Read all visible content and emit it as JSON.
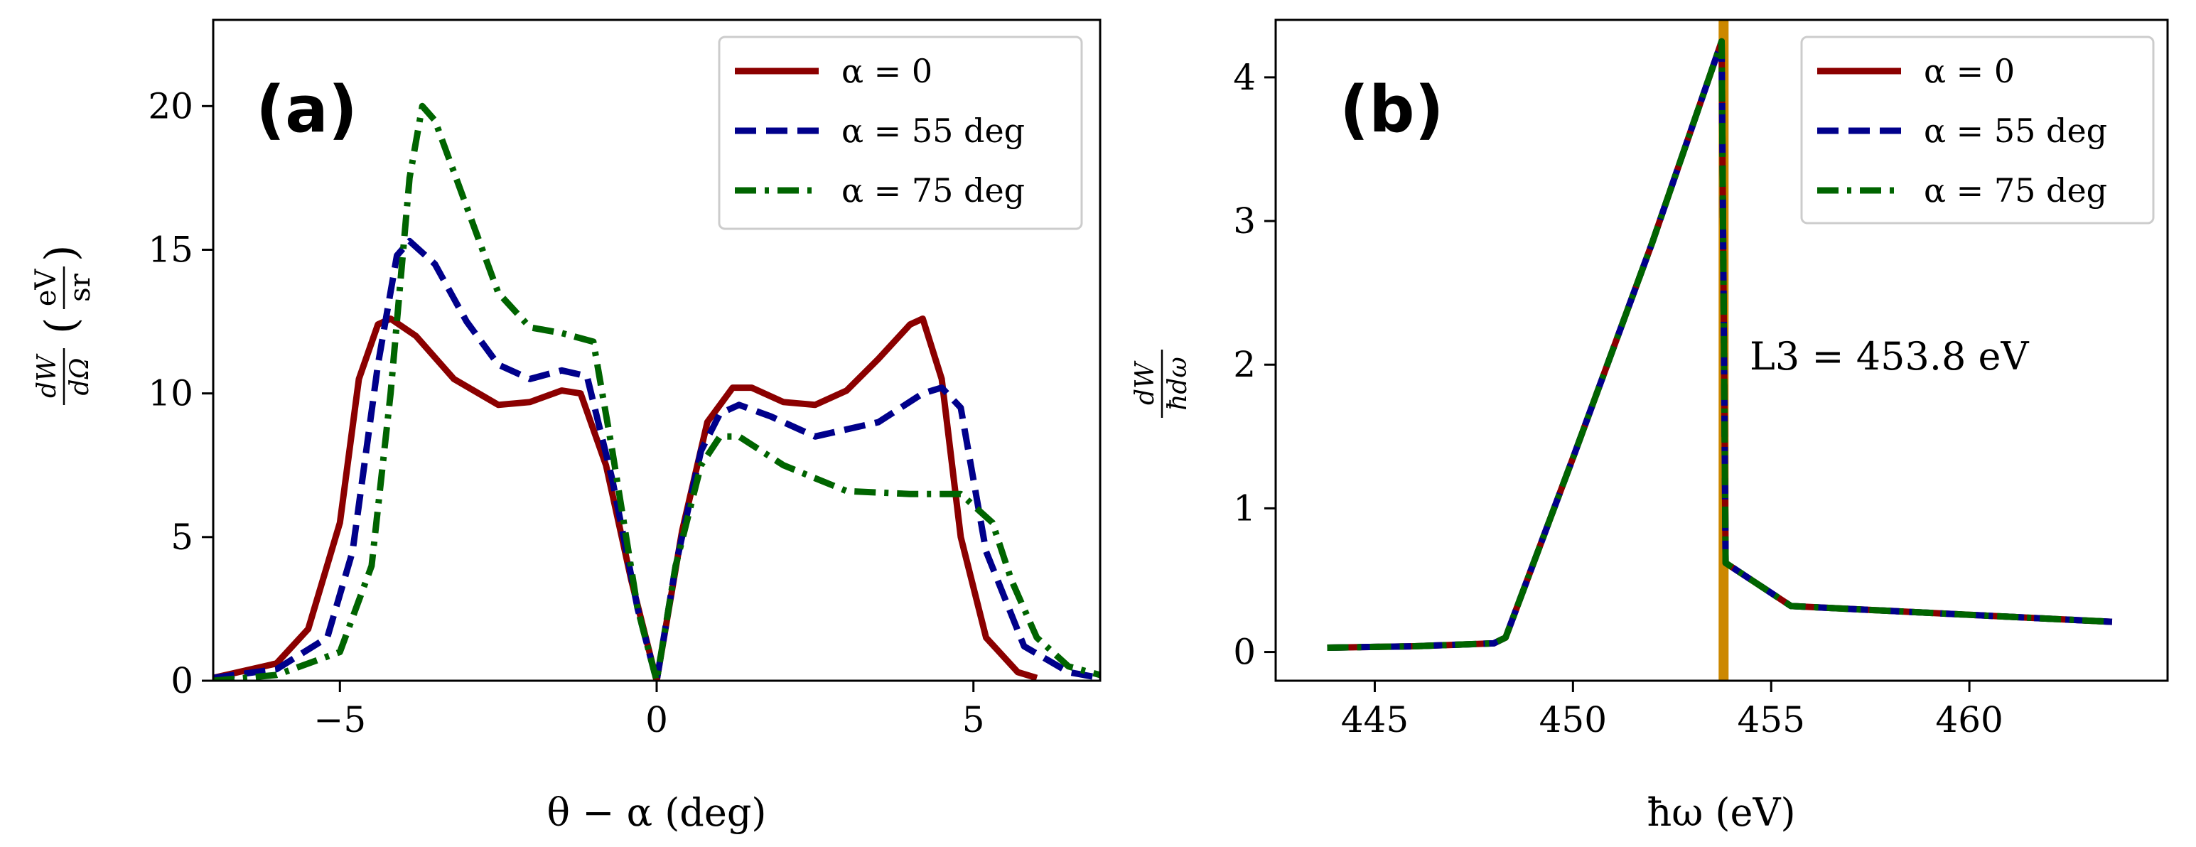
{
  "chart_data": [
    {
      "type": "line",
      "panel": "(a)",
      "xlabel": "θ − α (deg)",
      "ylabel": "dW/dΩ (eV/sr)",
      "ylabel_main": "dW",
      "ylabel_den": "dΩ",
      "ylabel_unit_num": "eV",
      "ylabel_unit_den": "sr",
      "xlim": [
        -7,
        7
      ],
      "ylim": [
        0,
        23
      ],
      "xticks": [
        -5,
        0,
        5
      ],
      "xtick_labels": [
        "−5",
        "0",
        "5"
      ],
      "yticks": [
        0,
        5,
        10,
        15,
        20
      ],
      "ytick_labels": [
        "0",
        "5",
        "10",
        "15",
        "20"
      ],
      "legend_position": "top-right",
      "series": [
        {
          "name": "α = 0",
          "color": "#8b0000",
          "style": "solid",
          "x": [
            -7,
            -6,
            -5.5,
            -5,
            -4.7,
            -4.4,
            -4.2,
            -3.8,
            -3.2,
            -2.5,
            -2.0,
            -1.5,
            -1.2,
            -0.8,
            -0.4,
            0,
            0.4,
            0.8,
            1.2,
            1.5,
            2.0,
            2.5,
            3.0,
            3.5,
            4.0,
            4.2,
            4.5,
            4.8,
            5.2,
            5.7,
            6.0
          ],
          "y": [
            0.1,
            0.6,
            1.8,
            5.5,
            10.5,
            12.4,
            12.6,
            12.0,
            10.5,
            9.6,
            9.7,
            10.1,
            10.0,
            7.5,
            3.5,
            0,
            5.2,
            9.0,
            10.2,
            10.2,
            9.7,
            9.6,
            10.1,
            11.2,
            12.4,
            12.6,
            10.5,
            5.0,
            1.5,
            0.3,
            0.1
          ]
        },
        {
          "name": "α = 55 deg",
          "color": "#00008b",
          "style": "dashed",
          "x": [
            -7,
            -6,
            -5.2,
            -4.8,
            -4.4,
            -4.1,
            -3.9,
            -3.5,
            -3.0,
            -2.5,
            -2.0,
            -1.5,
            -1.1,
            -0.7,
            -0.3,
            0,
            0.3,
            0.7,
            1.0,
            1.3,
            1.8,
            2.5,
            3.5,
            4.2,
            4.5,
            4.8,
            5.2,
            5.8,
            6.5,
            7.0
          ],
          "y": [
            0.1,
            0.4,
            1.5,
            4.5,
            11.0,
            14.8,
            15.3,
            14.5,
            12.5,
            11.0,
            10.5,
            10.8,
            10.6,
            7.0,
            2.5,
            0,
            4.0,
            8.0,
            9.3,
            9.6,
            9.2,
            8.5,
            9.0,
            10.0,
            10.2,
            9.5,
            4.5,
            1.2,
            0.3,
            0.1
          ]
        },
        {
          "name": "α = 75 deg",
          "color": "#006400",
          "style": "dashdot",
          "x": [
            -7,
            -6,
            -5,
            -4.5,
            -4.2,
            -3.9,
            -3.7,
            -3.5,
            -3.0,
            -2.5,
            -2.0,
            -1.5,
            -1.0,
            -0.7,
            -0.3,
            0,
            0.3,
            0.7,
            1.0,
            1.3,
            2.0,
            3.0,
            4.0,
            4.8,
            5.3,
            5.6,
            6.0,
            6.5,
            7.0
          ],
          "y": [
            0.0,
            0.2,
            1.0,
            4.0,
            10.0,
            17.5,
            20.0,
            19.5,
            16.5,
            13.5,
            12.3,
            12.1,
            11.8,
            8.0,
            2.5,
            0,
            4.0,
            7.5,
            8.5,
            8.5,
            7.5,
            6.6,
            6.5,
            6.5,
            5.5,
            3.5,
            1.5,
            0.5,
            0.2
          ]
        }
      ]
    },
    {
      "type": "line",
      "panel": "(b)",
      "xlabel": "ħω (eV)",
      "ylabel": "dW/ħdω",
      "ylabel_num": "dW",
      "ylabel_den": "ħdω",
      "xlim": [
        442.5,
        465
      ],
      "ylim": [
        -0.2,
        4.4
      ],
      "xticks": [
        445,
        450,
        455,
        460
      ],
      "xtick_labels": [
        "445",
        "450",
        "455",
        "460"
      ],
      "yticks": [
        0,
        1,
        2,
        3,
        4
      ],
      "ytick_labels": [
        "0",
        "1",
        "2",
        "3",
        "4"
      ],
      "legend_position": "top-right",
      "vline": {
        "x": 453.8,
        "color": "#cc8800",
        "label": "L3 = 453.8 eV"
      },
      "series": [
        {
          "name": "α = 0",
          "color": "#8b0000",
          "style": "solid",
          "x": [
            443.8,
            446,
            448,
            448.3,
            450,
            452,
            453.75,
            453.85,
            455.5,
            463.6
          ],
          "y": [
            0.03,
            0.04,
            0.06,
            0.1,
            1.35,
            2.85,
            4.25,
            0.62,
            0.32,
            0.21
          ]
        },
        {
          "name": "α = 55 deg",
          "color": "#00008b",
          "style": "dashed",
          "x": [
            443.8,
            446,
            448,
            448.3,
            450,
            452,
            453.75,
            453.85,
            455.5,
            463.6
          ],
          "y": [
            0.03,
            0.04,
            0.06,
            0.1,
            1.35,
            2.85,
            4.25,
            0.62,
            0.32,
            0.21
          ]
        },
        {
          "name": "α = 75 deg",
          "color": "#006400",
          "style": "dashdot",
          "x": [
            443.8,
            446,
            448,
            448.3,
            450,
            452,
            453.75,
            453.85,
            455.5,
            463.6
          ],
          "y": [
            0.03,
            0.04,
            0.06,
            0.1,
            1.35,
            2.85,
            4.25,
            0.62,
            0.32,
            0.21
          ]
        }
      ]
    }
  ]
}
